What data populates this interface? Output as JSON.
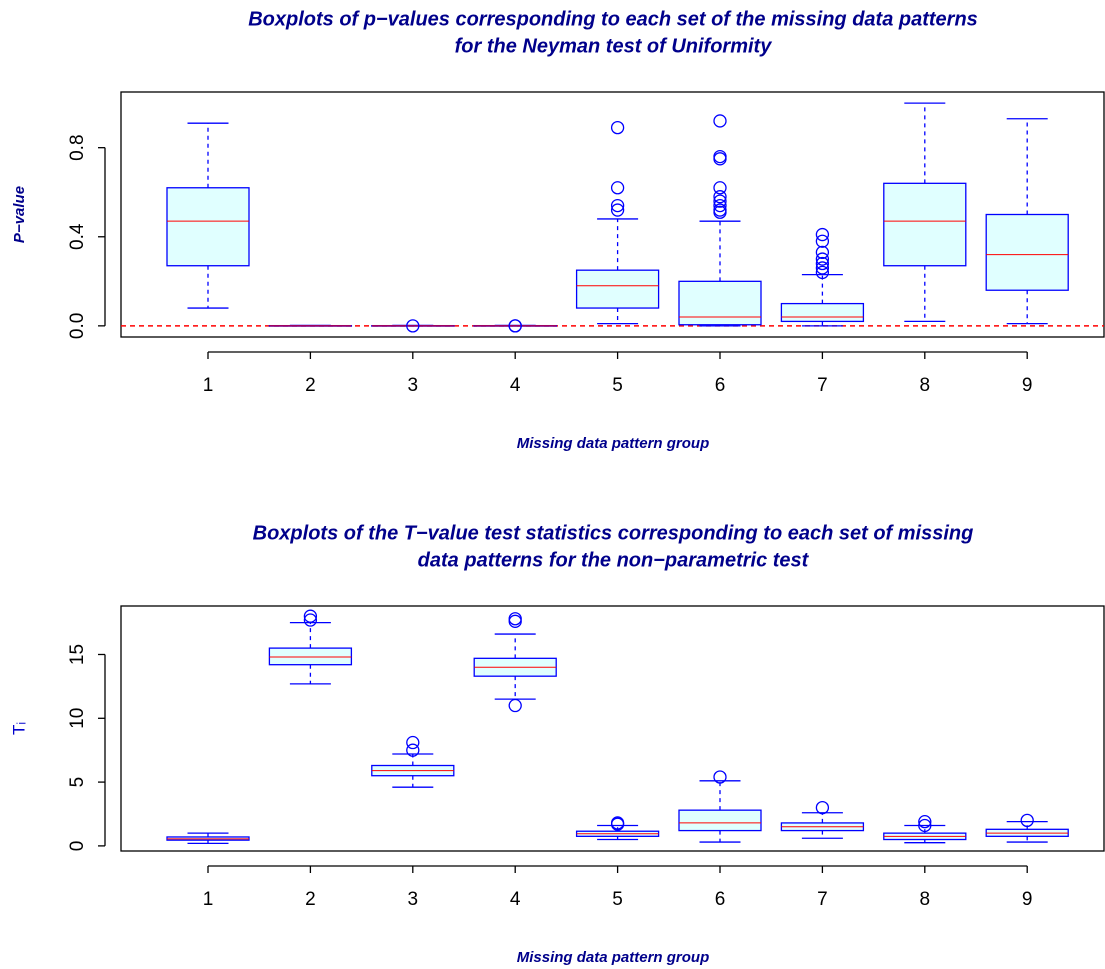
{
  "chart_data": [
    {
      "type": "boxplot",
      "title": [
        "Boxplots of p−values corresponding to each set of the missing data patterns",
        "for the Neyman test of Uniformity"
      ],
      "xlabel": "Missing data pattern group",
      "ylabel": "P−value",
      "categories": [
        "1",
        "2",
        "3",
        "4",
        "5",
        "6",
        "7",
        "8",
        "9"
      ],
      "boxes": [
        {
          "min": 0.08,
          "q1": 0.27,
          "median": 0.47,
          "q3": 0.62,
          "max": 0.91,
          "outliers": []
        },
        {
          "min": 0.0,
          "q1": 0.0,
          "median": 0.0,
          "q3": 0.001,
          "max": 0.002,
          "outliers": []
        },
        {
          "min": 0.0,
          "q1": 0.0,
          "median": 0.0,
          "q3": 0.001,
          "max": 0.002,
          "outliers": [
            0.0
          ]
        },
        {
          "min": 0.0,
          "q1": 0.0,
          "median": 0.0,
          "q3": 0.001,
          "max": 0.002,
          "outliers": [
            0.0,
            0.0
          ]
        },
        {
          "min": 0.01,
          "q1": 0.08,
          "median": 0.18,
          "q3": 0.25,
          "max": 0.48,
          "outliers": [
            0.52,
            0.54,
            0.62,
            0.89
          ]
        },
        {
          "min": 0.0,
          "q1": 0.005,
          "median": 0.04,
          "q3": 0.2,
          "max": 0.47,
          "outliers": [
            0.51,
            0.52,
            0.54,
            0.56,
            0.58,
            0.62,
            0.75,
            0.76,
            0.92
          ]
        },
        {
          "min": 0.0,
          "q1": 0.02,
          "median": 0.04,
          "q3": 0.1,
          "max": 0.23,
          "outliers": [
            0.24,
            0.26,
            0.28,
            0.3,
            0.33,
            0.38,
            0.41
          ]
        },
        {
          "min": 0.02,
          "q1": 0.27,
          "median": 0.47,
          "q3": 0.64,
          "max": 1.0,
          "outliers": []
        },
        {
          "min": 0.01,
          "q1": 0.16,
          "median": 0.32,
          "q3": 0.5,
          "max": 0.93,
          "outliers": []
        }
      ],
      "box_color": "#0000ff",
      "fill": "#e0ffff",
      "median_color": "#ff0000",
      "hline": {
        "value": 0.0,
        "color": "#ff0000",
        "dashed": true
      },
      "ylim": [
        -0.05,
        1.05
      ],
      "yticks": [
        {
          "value": 0.0,
          "label": "0.0"
        },
        {
          "value": 0.4,
          "label": "0.4"
        },
        {
          "value": 0.8,
          "label": "0.8"
        }
      ]
    },
    {
      "type": "boxplot",
      "title": [
        "Boxplots of the T−value test statistics corresponding to each set of missing",
        "data patterns for the non−parametric test"
      ],
      "xlabel": "Missing data pattern group",
      "ylabel": "Tᵢ",
      "categories": [
        "1",
        "2",
        "3",
        "4",
        "5",
        "6",
        "7",
        "8",
        "9"
      ],
      "boxes": [
        {
          "min": 0.2,
          "q1": 0.45,
          "median": 0.55,
          "q3": 0.7,
          "max": 1.0,
          "outliers": []
        },
        {
          "min": 12.7,
          "q1": 14.2,
          "median": 14.8,
          "q3": 15.5,
          "max": 17.5,
          "outliers": [
            17.7,
            18.0
          ]
        },
        {
          "min": 4.6,
          "q1": 5.5,
          "median": 5.9,
          "q3": 6.3,
          "max": 7.2,
          "outliers": [
            7.5,
            8.1
          ]
        },
        {
          "min": 11.5,
          "q1": 13.3,
          "median": 14.0,
          "q3": 14.7,
          "max": 16.6,
          "outliers": [
            11.0,
            17.6,
            17.8
          ]
        },
        {
          "min": 0.5,
          "q1": 0.75,
          "median": 0.95,
          "q3": 1.15,
          "max": 1.6,
          "outliers": [
            1.7,
            1.8
          ]
        },
        {
          "min": 0.3,
          "q1": 1.2,
          "median": 1.8,
          "q3": 2.8,
          "max": 5.1,
          "outliers": [
            5.4
          ]
        },
        {
          "min": 0.6,
          "q1": 1.2,
          "median": 1.5,
          "q3": 1.8,
          "max": 2.6,
          "outliers": [
            3.0
          ]
        },
        {
          "min": 0.25,
          "q1": 0.5,
          "median": 0.75,
          "q3": 1.0,
          "max": 1.6,
          "outliers": [
            1.6,
            1.9
          ]
        },
        {
          "min": 0.3,
          "q1": 0.75,
          "median": 1.0,
          "q3": 1.3,
          "max": 1.9,
          "outliers": [
            2.0
          ]
        }
      ],
      "box_color": "#0000ff",
      "fill": "#e0ffff",
      "median_color": "#ff0000",
      "ylim": [
        -0.4,
        18.8
      ],
      "yticks": [
        0,
        5,
        10,
        15
      ]
    }
  ]
}
